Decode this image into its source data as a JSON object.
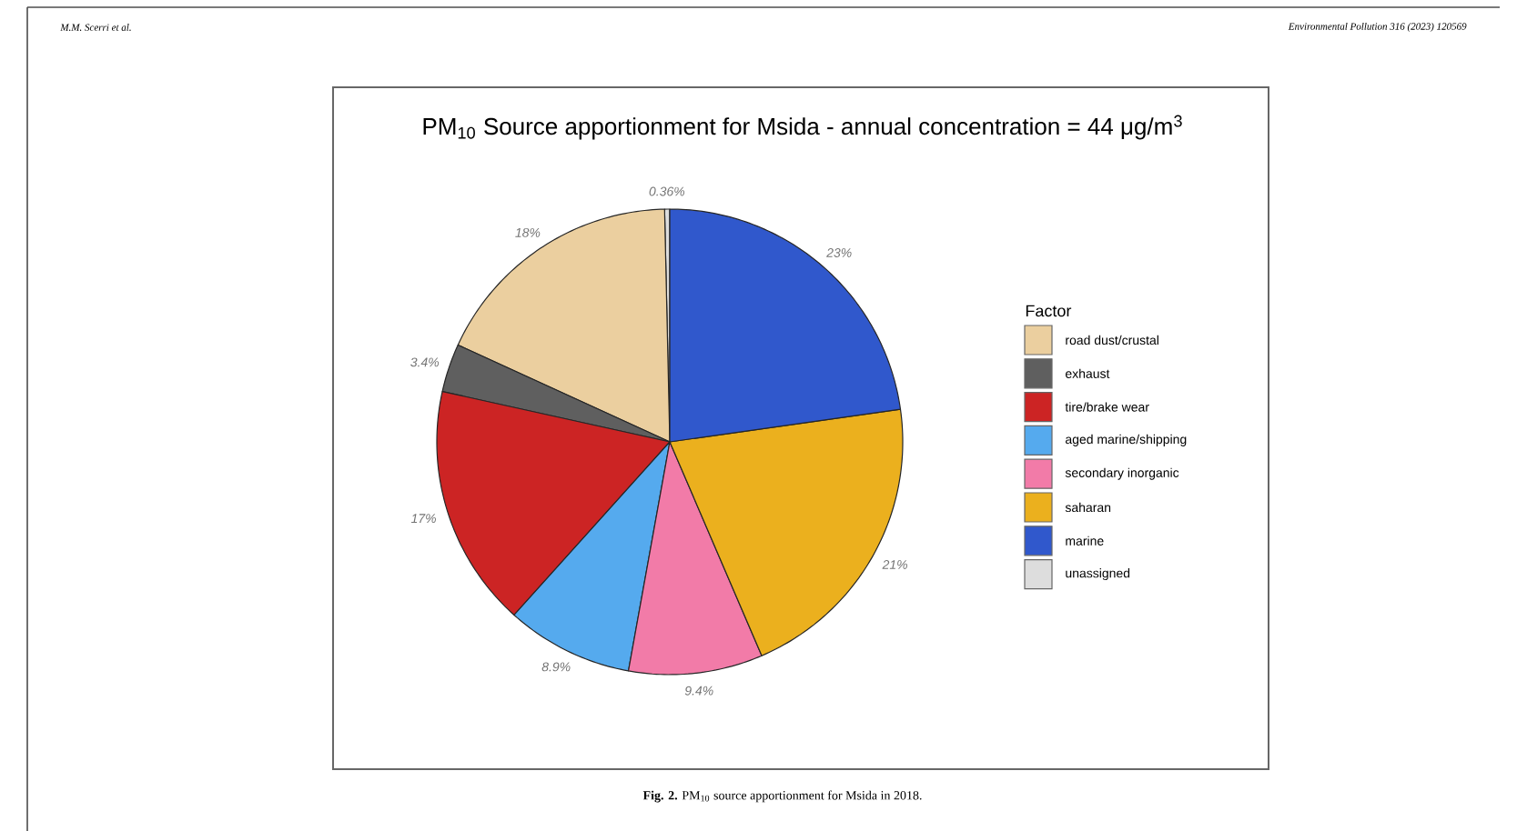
{
  "chart_data": {
    "type": "pie",
    "title": "PM$_{10}$ Source apportionment for Msida - annual concentration = 44 μg/m$^{3}$",
    "categories": [
      "road dust/crustal",
      "exhaust",
      "tire/brake wear",
      "aged marine/shipping",
      "secondary inorganic",
      "saharan",
      "marine",
      "unassigned"
    ],
    "values": [
      18,
      3.4,
      17,
      8.9,
      9.4,
      21,
      23,
      0.36
    ],
    "value_labels": [
      "18%",
      "3.4%",
      "17%",
      "8.9%",
      "9.4%",
      "21%",
      "23%",
      "0.36%"
    ],
    "colors": [
      "#ebcf9f",
      "#5f5f5f",
      "#cc2424",
      "#55aaee",
      "#f27ba8",
      "#ebb01e",
      "#3058cc",
      "#dddddd"
    ],
    "legend_title": "Factor",
    "legend": "right",
    "annotations": [
      "M.M. Scerri et al.",
      "Environmental Pollution 316 (2023) 120569",
      "**Fig. 2.** PM$_{10}$ source apportionment for Msida in 2018."
    ]
  }
}
